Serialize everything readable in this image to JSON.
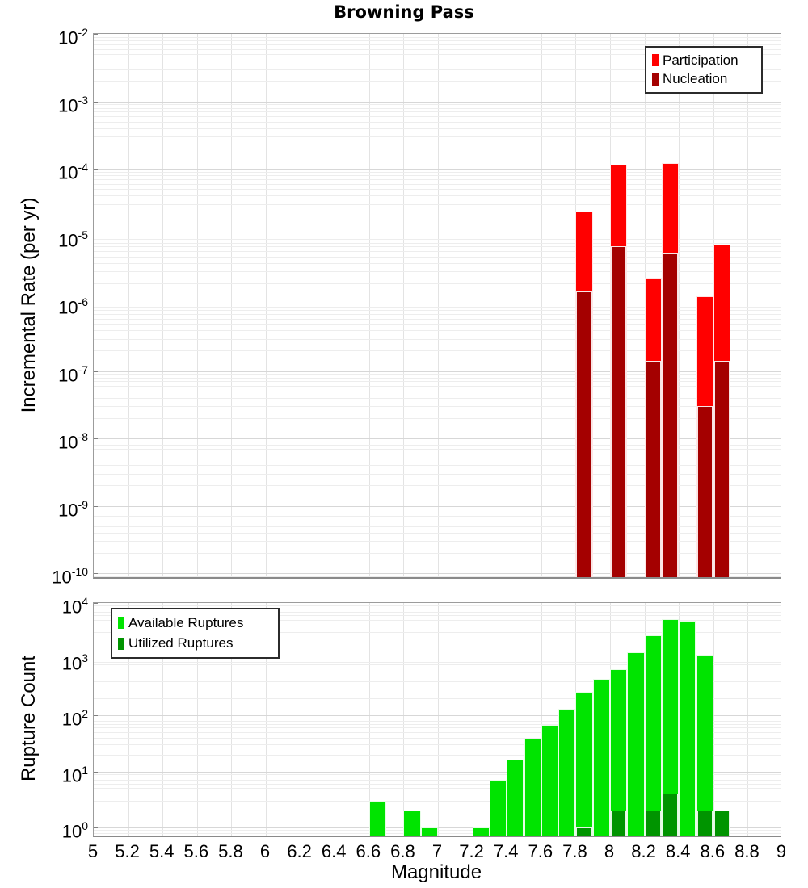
{
  "title": "Browning Pass",
  "xlabel": "Magnitude",
  "x_ticks": [
    "5",
    "5.2",
    "5.4",
    "5.6",
    "5.8",
    "6",
    "6.2",
    "6.4",
    "6.6",
    "6.8",
    "7",
    "7.2",
    "7.4",
    "7.6",
    "7.8",
    "8",
    "8.2",
    "8.4",
    "8.6",
    "8.8",
    "9"
  ],
  "colors": {
    "participation": "#ff0000",
    "nucleation": "#a40000",
    "available": "#00e400",
    "utilized": "#009400"
  },
  "chart_data": [
    {
      "panel": "incremental-rate",
      "type": "bar",
      "ylabel": "Incremental Rate (per yr)",
      "y_scale": "log",
      "ylim": [
        1e-10,
        0.01
      ],
      "xlim": [
        5,
        9
      ],
      "grid": true,
      "y_tick_exponents": [
        -2,
        -3,
        -4,
        -5,
        -6,
        -7,
        -8,
        -9,
        -10
      ],
      "bin_width": 0.1,
      "legend": {
        "position": "top-right",
        "entries": [
          {
            "label": "Participation",
            "color": "#ff0000"
          },
          {
            "label": "Nucleation",
            "color": "#a40000"
          }
        ]
      },
      "categories": [
        7.85,
        8.05,
        8.25,
        8.35,
        8.55,
        8.65
      ],
      "series": [
        {
          "name": "Participation",
          "color": "#ff0000",
          "values": [
            2.3e-05,
            0.000115,
            2.4e-06,
            0.00012,
            1.3e-06,
            7.5e-06
          ]
        },
        {
          "name": "Nucleation",
          "color": "#a40000",
          "values": [
            1.5e-06,
            7e-06,
            1.4e-07,
            5.5e-06,
            3e-08,
            1.4e-07
          ]
        }
      ]
    },
    {
      "panel": "rupture-count",
      "type": "bar",
      "ylabel": "Rupture Count",
      "y_scale": "log",
      "ylim": [
        1,
        10000
      ],
      "xlim": [
        5,
        9
      ],
      "grid": true,
      "y_tick_exponents": [
        4,
        3,
        2,
        1,
        0
      ],
      "bin_width": 0.1,
      "legend": {
        "position": "top-left",
        "entries": [
          {
            "label": "Available Ruptures",
            "color": "#00e400"
          },
          {
            "label": "Utilized Ruptures",
            "color": "#009400"
          }
        ]
      },
      "categories": [
        6.65,
        6.85,
        6.95,
        7.25,
        7.35,
        7.45,
        7.55,
        7.65,
        7.75,
        7.85,
        7.95,
        8.05,
        8.15,
        8.25,
        8.35,
        8.45,
        8.55,
        8.65
      ],
      "series": [
        {
          "name": "Available Ruptures",
          "color": "#00e400",
          "values": [
            3,
            2,
            1,
            1,
            7,
            16,
            38,
            67,
            130,
            260,
            450,
            660,
            1320,
            2700,
            5100,
            4800,
            1220,
            2
          ]
        },
        {
          "name": "Utilized Ruptures",
          "color": "#009400",
          "values": [
            0,
            0,
            0,
            0,
            0,
            0,
            0,
            0,
            0,
            1,
            0,
            2,
            0,
            2,
            4,
            0,
            2,
            2
          ]
        }
      ]
    }
  ]
}
